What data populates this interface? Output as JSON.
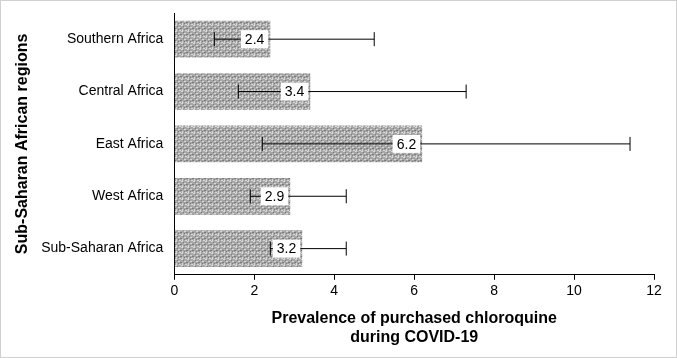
{
  "chart_data": {
    "type": "bar",
    "orientation": "horizontal",
    "categories": [
      "Southern Africa",
      "Central Africa",
      "East Africa",
      "West Africa",
      "Sub-Saharan Africa"
    ],
    "values": [
      2.4,
      3.4,
      6.2,
      2.9,
      3.2
    ],
    "error_bars": [
      [
        1.0,
        5.0
      ],
      [
        1.6,
        7.3
      ],
      [
        2.2,
        11.4
      ],
      [
        1.9,
        4.3
      ],
      [
        2.4,
        4.3
      ]
    ],
    "color": "#a6a6a6",
    "x_label": [
      "Prevalence of purchased chloroquine",
      "during COVID-19"
    ],
    "y_label": "Sub-Saharan African regions",
    "xlim": [
      0,
      12
    ],
    "xticks": [
      0,
      2,
      4,
      6,
      8,
      10,
      12
    ],
    "grid": false,
    "data_labels": true
  }
}
